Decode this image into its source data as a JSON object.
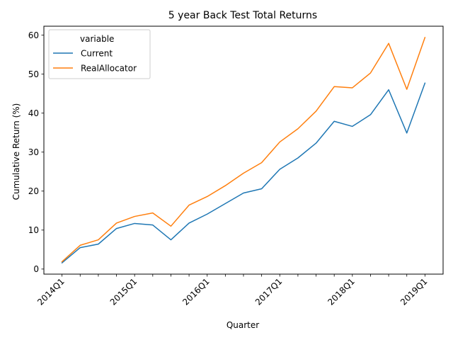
{
  "chart_data": {
    "type": "line",
    "title": "5 year Back Test Total Returns",
    "xlabel": "Quarter",
    "ylabel": "Cumulative Return (%)",
    "x": [
      "2014Q1",
      "2014Q2",
      "2014Q3",
      "2014Q4",
      "2015Q1",
      "2015Q2",
      "2015Q3",
      "2015Q4",
      "2016Q1",
      "2016Q2",
      "2016Q3",
      "2016Q4",
      "2017Q1",
      "2017Q2",
      "2017Q3",
      "2017Q4",
      "2018Q1",
      "2018Q2",
      "2018Q3",
      "2018Q4",
      "2019Q1"
    ],
    "x_tick_labels": [
      "2014Q1",
      "2015Q1",
      "2016Q1",
      "2017Q1",
      "2018Q1",
      "2019Q1"
    ],
    "yticks": [
      0,
      10,
      20,
      30,
      40,
      50,
      60
    ],
    "ylim": [
      -1.3,
      62.3
    ],
    "grid": false,
    "legend": {
      "title": "variable",
      "position": "upper-left"
    },
    "series": [
      {
        "name": "Current",
        "color": "#1f77b4",
        "values": [
          1.6,
          5.5,
          6.4,
          10.4,
          11.7,
          11.3,
          7.5,
          11.8,
          14.1,
          16.8,
          19.5,
          20.6,
          25.6,
          28.5,
          32.3,
          37.9,
          36.6,
          39.6,
          46.0,
          34.9,
          47.7
        ]
      },
      {
        "name": "RealAllocator",
        "color": "#ff7f0e",
        "values": [
          1.9,
          6.1,
          7.5,
          11.8,
          13.5,
          14.4,
          11.0,
          16.4,
          18.6,
          21.4,
          24.6,
          27.3,
          32.6,
          36.0,
          40.5,
          46.8,
          46.5,
          50.3,
          57.9,
          46.1,
          59.4
        ]
      }
    ]
  }
}
